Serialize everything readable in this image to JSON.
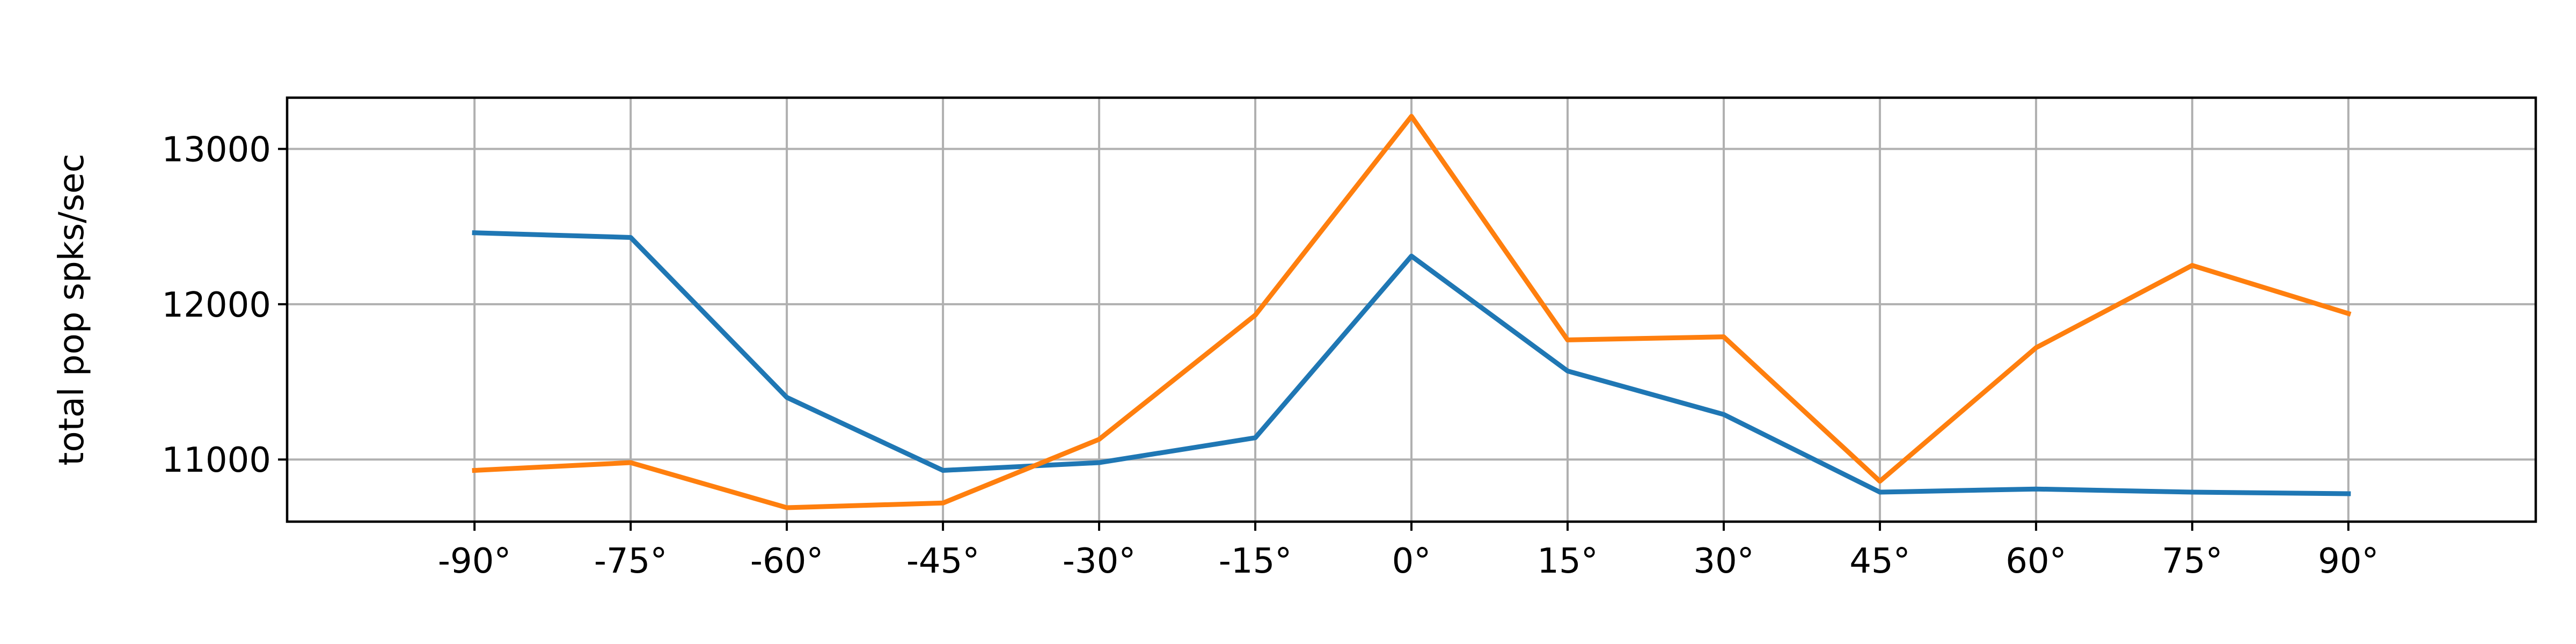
{
  "chart_data": {
    "type": "line",
    "x": [
      "-90°",
      "-75°",
      "-60°",
      "-45°",
      "-30°",
      "-15°",
      "0°",
      "15°",
      "30°",
      "45°",
      "60°",
      "75°",
      "90°"
    ],
    "x_values": [
      -90,
      -75,
      -60,
      -45,
      -30,
      -15,
      0,
      15,
      30,
      45,
      60,
      75,
      90
    ],
    "xlim": [
      -108,
      108
    ],
    "ylim": [
      10600,
      13330
    ],
    "y_ticks": [
      11000,
      12000,
      13000
    ],
    "y_tick_labels": [
      "11000",
      "12000",
      "13000"
    ],
    "xlabel": "",
    "ylabel": "total pop spks/sec",
    "title": "",
    "grid": true,
    "series": [
      {
        "color": "#1f77b4",
        "values": [
          12460,
          12430,
          11400,
          10930,
          10980,
          11140,
          12310,
          11570,
          11290,
          10790,
          10810,
          10790,
          10780
        ]
      },
      {
        "color": "#ff7f0e",
        "values": [
          10930,
          10980,
          10690,
          10720,
          11130,
          11930,
          13210,
          11770,
          11790,
          10860,
          11720,
          12250,
          11940
        ]
      }
    ]
  }
}
